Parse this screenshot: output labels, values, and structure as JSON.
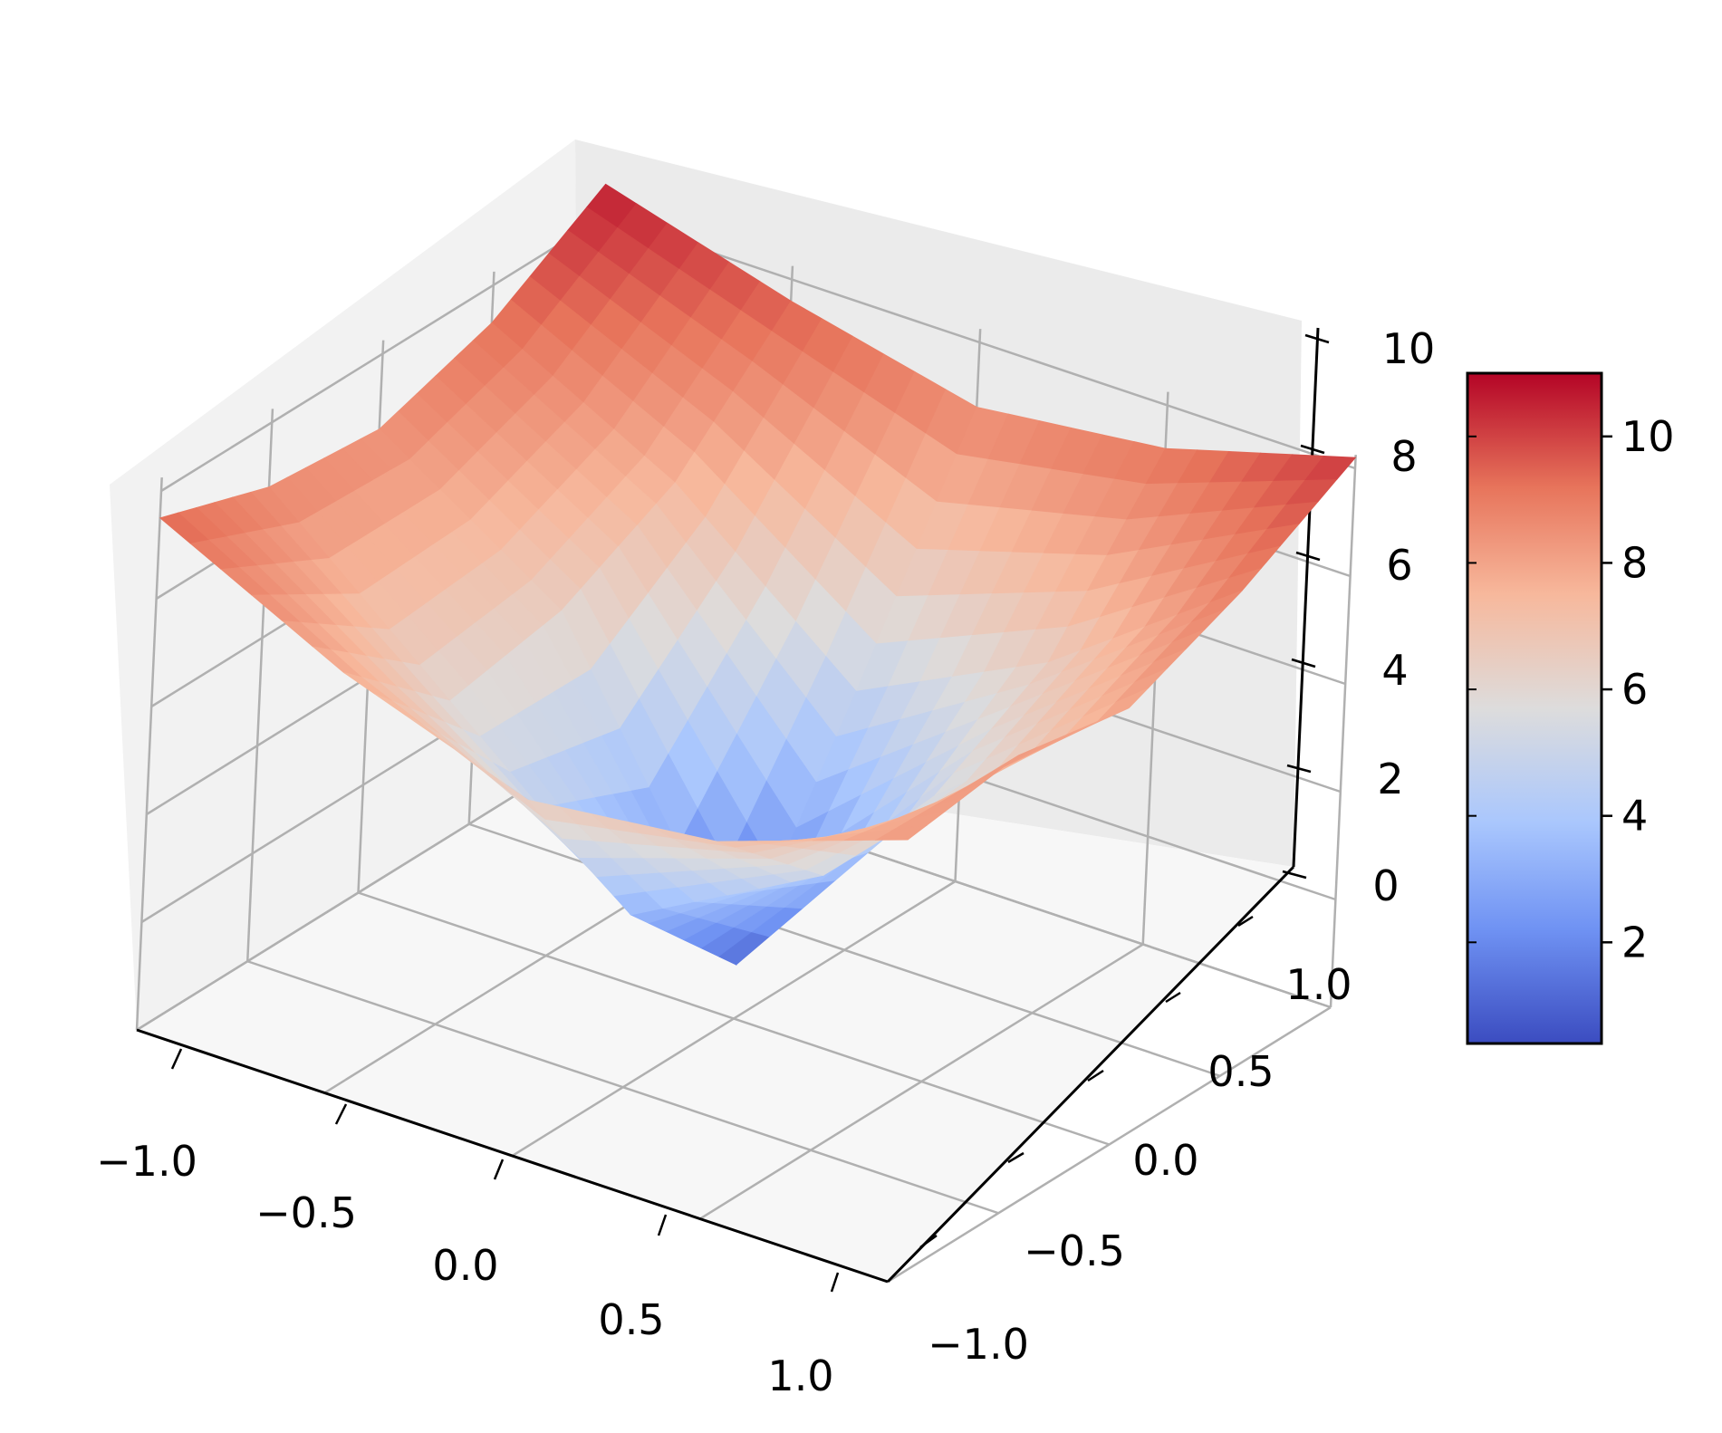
{
  "chart_data": {
    "type": "surface",
    "title": "",
    "xlabel": "",
    "ylabel": "",
    "zlabel": "",
    "colormap": "coolwarm",
    "x_ticks": [
      "−1.0",
      "−0.5",
      "0.0",
      "0.5",
      "1.0"
    ],
    "y_ticks": [
      "−1.0",
      "−0.5",
      "0.0",
      "0.5",
      "1.0"
    ],
    "z_ticks": [
      "0",
      "2",
      "4",
      "6",
      "8",
      "10"
    ],
    "xlim": [
      -1,
      1
    ],
    "ylim": [
      -1,
      1
    ],
    "zlim": [
      0,
      10
    ],
    "colorbar": {
      "range": [
        0.4,
        11.0
      ],
      "ticks": [
        "2",
        "4",
        "6",
        "8",
        "10"
      ],
      "tick_values": [
        2,
        4,
        6,
        8,
        10
      ],
      "colors": [
        "#3b4cc0",
        "#6f92f3",
        "#aac7fd",
        "#dddcdc",
        "#f7b89c",
        "#e7745b",
        "#b40426"
      ]
    },
    "grid": true,
    "x": [
      -1.0,
      -0.5,
      0.0,
      0.5,
      1.0
    ],
    "y": [
      -1.0,
      -0.5,
      0.0,
      0.5,
      1.0
    ],
    "z": [
      [
        9.5,
        7.8,
        6.6,
        7.0,
        8.2
      ],
      [
        8.8,
        6.0,
        3.2,
        5.1,
        8.5
      ],
      [
        8.6,
        6.4,
        1.0,
        5.3,
        8.1
      ],
      [
        9.3,
        7.5,
        4.8,
        6.5,
        9.0
      ],
      [
        10.6,
        9.6,
        8.8,
        9.2,
        10.2
      ]
    ]
  }
}
